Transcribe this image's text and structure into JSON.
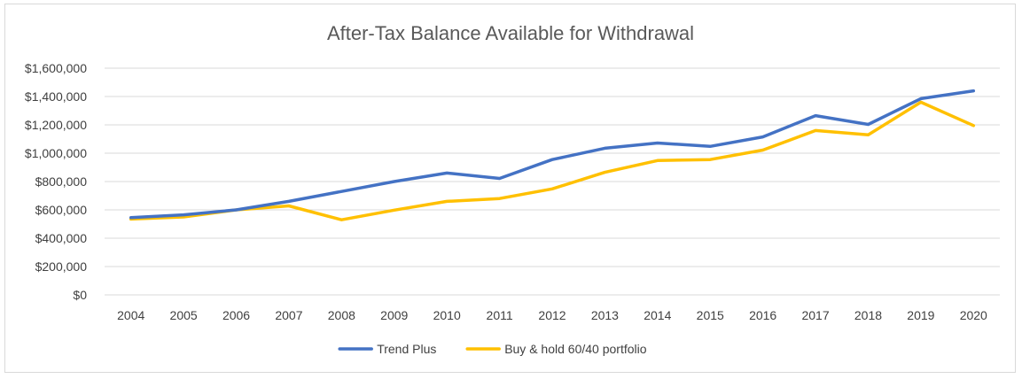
{
  "chart_data": {
    "type": "line",
    "title": "After-Tax Balance Available for Withdrawal",
    "xlabel": "",
    "ylabel": "",
    "categories": [
      "2004",
      "2005",
      "2006",
      "2007",
      "2008",
      "2009",
      "2010",
      "2011",
      "2012",
      "2013",
      "2014",
      "2015",
      "2016",
      "2017",
      "2018",
      "2019",
      "2020"
    ],
    "ylim": [
      0,
      1600000
    ],
    "yticks": [
      0,
      200000,
      400000,
      600000,
      800000,
      1000000,
      1200000,
      1400000,
      1600000
    ],
    "ytick_labels": [
      "$0",
      "$200,000",
      "$400,000",
      "$600,000",
      "$800,000",
      "$1,000,000",
      "$1,200,000",
      "$1,400,000",
      "$1,600,000"
    ],
    "grid": true,
    "legend_position": "bottom",
    "series": [
      {
        "name": "Trend Plus",
        "color": "#4472C4",
        "values": [
          545000,
          565000,
          600000,
          660000,
          730000,
          800000,
          860000,
          822000,
          955000,
          1035000,
          1072000,
          1048000,
          1115000,
          1265000,
          1203000,
          1385000,
          1440000
        ]
      },
      {
        "name": "Buy & hold 60/40 portfolio",
        "color": "#FFC000",
        "values": [
          535000,
          550000,
          600000,
          628000,
          530000,
          598000,
          660000,
          680000,
          748000,
          865000,
          948000,
          955000,
          1022000,
          1160000,
          1130000,
          1360000,
          1195000
        ]
      }
    ]
  }
}
